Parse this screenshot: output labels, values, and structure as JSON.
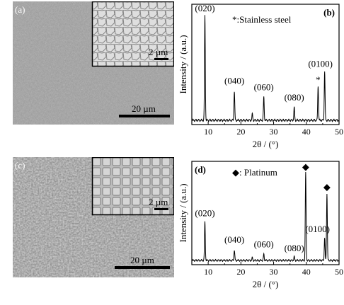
{
  "figure": {
    "panels": {
      "a": {
        "label": "(a)",
        "inset_scale": "2 µm",
        "main_scale": "20 µm"
      },
      "c": {
        "label": "(c)",
        "inset_scale": "2 µm",
        "main_scale": "20 µm"
      }
    }
  },
  "chart_data": [
    {
      "type": "line",
      "panel_label": "(b)",
      "legend_text": "*:Stainless steel",
      "xlabel": "2θ / (°)",
      "ylabel": "Intensity / (a.u.)",
      "xlim": [
        5,
        50
      ],
      "xticks": [
        10,
        20,
        30,
        40,
        50
      ],
      "yticks_shown": false,
      "peaks": [
        {
          "x": 9.0,
          "y": 1.0,
          "label": "(020)"
        },
        {
          "x": 18.0,
          "y": 0.28,
          "label": "(040)"
        },
        {
          "x": 23.5,
          "y": 0.06,
          "label": ""
        },
        {
          "x": 27.0,
          "y": 0.22,
          "label": "(060)"
        },
        {
          "x": 36.3,
          "y": 0.12,
          "label": "(080)"
        },
        {
          "x": 43.6,
          "y": 0.33,
          "label": "*"
        },
        {
          "x": 45.6,
          "y": 0.47,
          "label": "(0100)"
        }
      ]
    },
    {
      "type": "line",
      "panel_label": "(d)",
      "legend_text": "◆: Platinum",
      "xlabel": "2θ / (°)",
      "ylabel": "Intensity / (a.u.)",
      "xlim": [
        5,
        50
      ],
      "xticks": [
        10,
        20,
        30,
        40,
        50
      ],
      "yticks_shown": false,
      "peaks": [
        {
          "x": 9.0,
          "y": 0.44,
          "label": "(020)"
        },
        {
          "x": 18.0,
          "y": 0.12,
          "label": "(040)"
        },
        {
          "x": 23.5,
          "y": 0.03,
          "label": ""
        },
        {
          "x": 27.0,
          "y": 0.07,
          "label": "(060)"
        },
        {
          "x": 36.3,
          "y": 0.04,
          "label": "(080)"
        },
        {
          "x": 39.8,
          "y": 1.0,
          "label": "◆"
        },
        {
          "x": 45.6,
          "y": 0.26,
          "label": "(0100)"
        },
        {
          "x": 46.3,
          "y": 0.77,
          "label": "◆"
        }
      ]
    }
  ]
}
